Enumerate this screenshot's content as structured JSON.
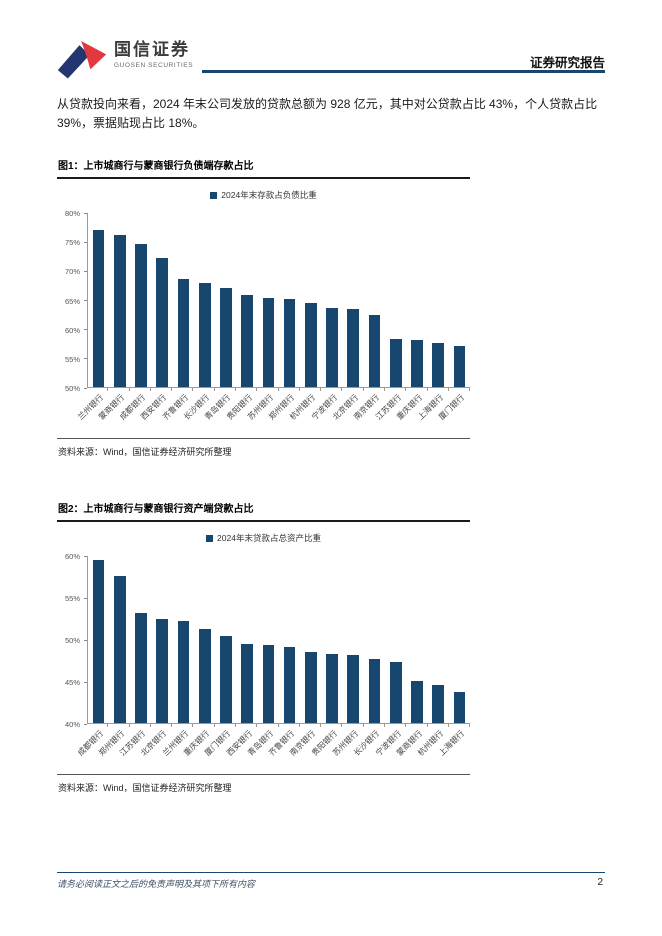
{
  "header": {
    "logo_cn": "国信证券",
    "logo_en": "GUOSEN SECURITIES",
    "report_type": "证券研究报告"
  },
  "body_paragraph": "从贷款投向来看，2024 年末公司发放的贷款总额为 928 亿元，其中对公贷款占比 43%，个人贷款占比 39%，票据贴现占比 18%。",
  "figure_source": "资料来源：Wind，国信证券经济研究所整理",
  "footer": {
    "disclaimer": "请务必阅读正文之后的免责声明及其项下所有内容",
    "page_number": "2"
  },
  "colors": {
    "bar": "#17466F",
    "accent_line": "#17466F",
    "logo_blue": "#243672",
    "logo_red": "#E2383F"
  },
  "chart_data": [
    {
      "type": "bar",
      "title": "图1：上市城商行与蒙商银行负债端存款占比",
      "legend": "2024年末存款占负债比重",
      "categories": [
        "兰州银行",
        "蒙商银行",
        "成都银行",
        "西安银行",
        "齐鲁银行",
        "长沙银行",
        "青岛银行",
        "贵阳银行",
        "苏州银行",
        "郑州银行",
        "杭州银行",
        "宁波银行",
        "北京银行",
        "南京银行",
        "江苏银行",
        "重庆银行",
        "上海银行",
        "厦门银行"
      ],
      "values": [
        77.0,
        76.1,
        74.6,
        72.1,
        68.5,
        67.9,
        66.9,
        65.8,
        65.3,
        65.1,
        64.4,
        63.5,
        63.4,
        62.4,
        58.2,
        58.1,
        57.5,
        57.0
      ],
      "ylim": [
        50,
        80
      ],
      "yticks": [
        80,
        75,
        70,
        65,
        60,
        55,
        50
      ],
      "xlabel": "",
      "ylabel": "",
      "grid": false,
      "legend_position": "top"
    },
    {
      "type": "bar",
      "title": "图2：上市城商行与蒙商银行资产端贷款占比",
      "legend": "2024年末贷款占总资产比重",
      "categories": [
        "成都银行",
        "郑州银行",
        "江苏银行",
        "北京银行",
        "兰州银行",
        "重庆银行",
        "厦门银行",
        "西安银行",
        "青岛银行",
        "齐鲁银行",
        "南京银行",
        "贵阳银行",
        "苏州银行",
        "长沙银行",
        "宁波银行",
        "蒙商银行",
        "杭州银行",
        "上海银行"
      ],
      "values": [
        59.4,
        57.5,
        53.1,
        52.4,
        52.2,
        51.2,
        50.4,
        49.4,
        49.3,
        49.0,
        48.5,
        48.2,
        48.1,
        47.6,
        47.3,
        45.0,
        44.5,
        43.7
      ],
      "ylim": [
        40,
        60
      ],
      "yticks": [
        60,
        55,
        50,
        45,
        40
      ],
      "xlabel": "",
      "ylabel": "",
      "grid": false,
      "legend_position": "top"
    }
  ]
}
